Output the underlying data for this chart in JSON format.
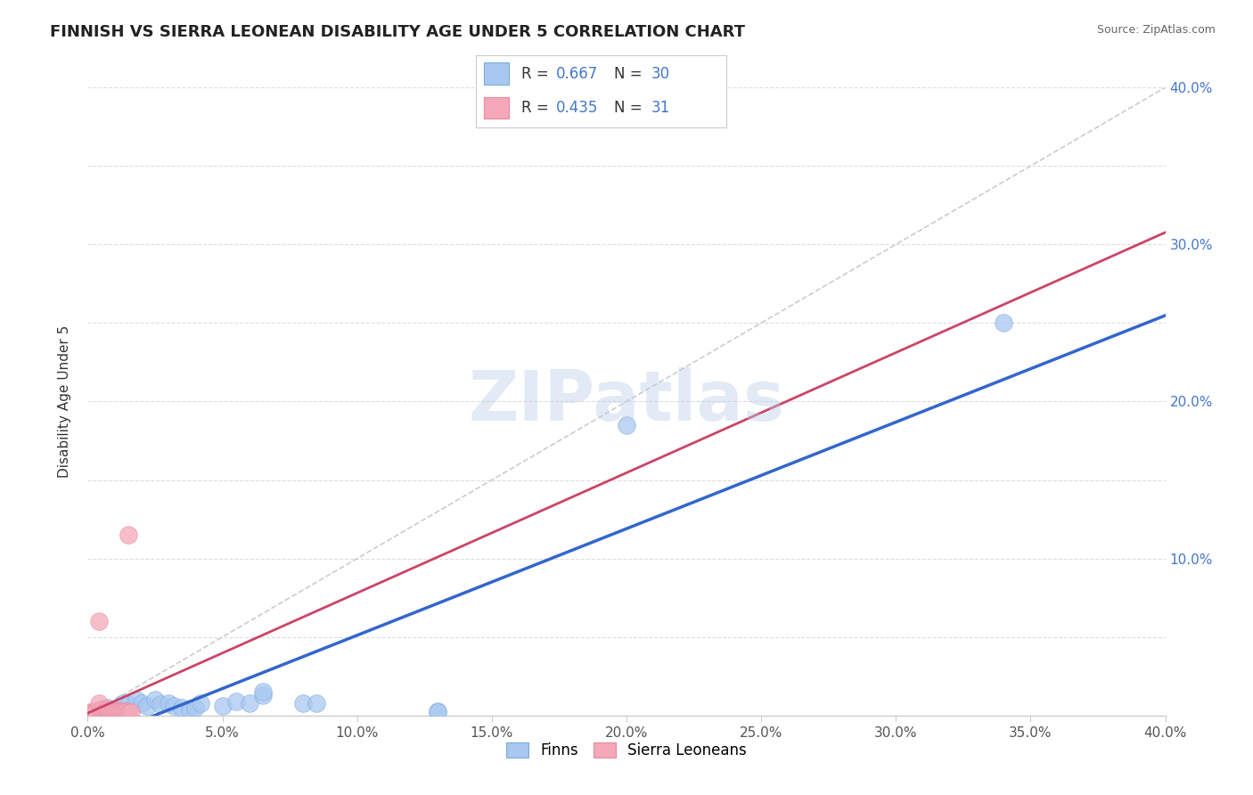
{
  "title": "FINNISH VS SIERRA LEONEAN DISABILITY AGE UNDER 5 CORRELATION CHART",
  "source": "Source: ZipAtlas.com",
  "ylabel": "Disability Age Under 5",
  "xlim": [
    0.0,
    0.4
  ],
  "ylim": [
    0.0,
    0.4
  ],
  "xticks": [
    0.0,
    0.05,
    0.1,
    0.15,
    0.2,
    0.25,
    0.3,
    0.35,
    0.4
  ],
  "yticks": [
    0.0,
    0.1,
    0.2,
    0.3,
    0.4
  ],
  "finns_R": 0.667,
  "finns_N": 30,
  "sierra_R": 0.435,
  "sierra_N": 31,
  "finns_color": "#a8c8f0",
  "sierra_color": "#f4a8b8",
  "finns_edge_color": "#7aaae0",
  "sierra_edge_color": "#e888a0",
  "regression_color_finns": "#3366cc",
  "regression_color_sierra": "#cc4466",
  "diagonal_color": "#cccccc",
  "diagonal_style": "--",
  "watermark": "ZIPatlas",
  "finns_data": [
    [
      0.002,
      0.001
    ],
    [
      0.004,
      0.003
    ],
    [
      0.005,
      0.004
    ],
    [
      0.007,
      0.005
    ],
    [
      0.008,
      0.003
    ],
    [
      0.01,
      0.004
    ],
    [
      0.013,
      0.008
    ],
    [
      0.015,
      0.007
    ],
    [
      0.018,
      0.01
    ],
    [
      0.02,
      0.008
    ],
    [
      0.022,
      0.006
    ],
    [
      0.025,
      0.01
    ],
    [
      0.027,
      0.007
    ],
    [
      0.03,
      0.008
    ],
    [
      0.032,
      0.006
    ],
    [
      0.035,
      0.005
    ],
    [
      0.038,
      0.003
    ],
    [
      0.04,
      0.005
    ],
    [
      0.042,
      0.008
    ],
    [
      0.05,
      0.006
    ],
    [
      0.055,
      0.009
    ],
    [
      0.06,
      0.008
    ],
    [
      0.065,
      0.013
    ],
    [
      0.065,
      0.015
    ],
    [
      0.08,
      0.008
    ],
    [
      0.085,
      0.008
    ],
    [
      0.13,
      0.003
    ],
    [
      0.13,
      0.002
    ],
    [
      0.2,
      0.185
    ],
    [
      0.34,
      0.25
    ]
  ],
  "sierra_data": [
    [
      0.001,
      0.002
    ],
    [
      0.002,
      0.002
    ],
    [
      0.003,
      0.002
    ],
    [
      0.003,
      0.003
    ],
    [
      0.004,
      0.008
    ],
    [
      0.004,
      0.06
    ],
    [
      0.005,
      0.002
    ],
    [
      0.005,
      0.004
    ],
    [
      0.006,
      0.002
    ],
    [
      0.006,
      0.003
    ],
    [
      0.007,
      0.002
    ],
    [
      0.007,
      0.003
    ],
    [
      0.007,
      0.004
    ],
    [
      0.008,
      0.002
    ],
    [
      0.008,
      0.003
    ],
    [
      0.009,
      0.002
    ],
    [
      0.009,
      0.003
    ],
    [
      0.01,
      0.002
    ],
    [
      0.01,
      0.002
    ],
    [
      0.01,
      0.003
    ],
    [
      0.011,
      0.002
    ],
    [
      0.011,
      0.003
    ],
    [
      0.012,
      0.002
    ],
    [
      0.012,
      0.003
    ],
    [
      0.013,
      0.002
    ],
    [
      0.013,
      0.003
    ],
    [
      0.014,
      0.002
    ],
    [
      0.014,
      0.003
    ],
    [
      0.015,
      0.002
    ],
    [
      0.015,
      0.115
    ],
    [
      0.016,
      0.002
    ]
  ],
  "background_color": "#ffffff",
  "grid_color": "#dddddd",
  "title_color": "#222222",
  "source_color": "#666666",
  "tick_color_x": "#555555",
  "tick_color_y_right": "#4477cc",
  "title_fontsize": 13,
  "axis_label_fontsize": 11,
  "tick_fontsize": 11,
  "stats_fontsize": 12,
  "scatter_size": 200,
  "scatter_alpha": 0.75,
  "regression_linewidth": 2.5,
  "diagonal_linewidth": 1.2
}
